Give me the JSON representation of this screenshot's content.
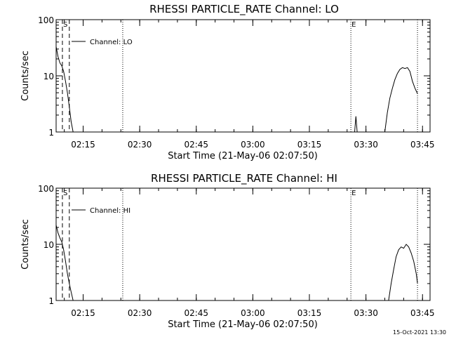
{
  "footer_timestamp": "15-Oct-2021 13:30",
  "chart_data": [
    {
      "type": "line",
      "title": "RHESSI PARTICLE_RATE Channel: LO",
      "xlabel": "Start Time (21-May-06 02:07:50)",
      "ylabel": "Counts/sec",
      "yscale": "log",
      "ylim": [
        1,
        100
      ],
      "xlim": [
        "02:07:50",
        "03:47:00"
      ],
      "x_ticks": [
        "02:15",
        "02:30",
        "02:45",
        "03:00",
        "03:15",
        "03:30",
        "03:45"
      ],
      "y_ticks": [
        "1",
        "10",
        "100"
      ],
      "legend": {
        "label": "Channel: LO",
        "placement": "top-left"
      },
      "markers": [
        {
          "label": "S",
          "time": "02:09:30",
          "style": "dashed"
        },
        {
          "label": "",
          "time": "02:11:20",
          "style": "dashed"
        },
        {
          "label": "",
          "time": "02:25:30",
          "style": "dotted"
        },
        {
          "label": "E",
          "time": "03:26:00",
          "style": "dotted"
        },
        {
          "label": "",
          "time": "03:43:40",
          "style": "dotted"
        }
      ],
      "series": [
        {
          "name": "Channel: LO",
          "segments": [
            {
              "x": [
                "02:07:50",
                "02:08:20",
                "02:08:50",
                "02:09:20",
                "02:09:50",
                "02:10:20",
                "02:10:50",
                "02:11:20",
                "02:11:50",
                "02:12:20"
              ],
              "y": [
                33,
                22,
                17,
                15,
                12,
                8,
                5,
                2.8,
                1.5,
                1
              ]
            },
            {
              "x": [
                "03:27:00",
                "03:27:20",
                "03:27:40"
              ],
              "y": [
                1,
                1.9,
                1
              ]
            },
            {
              "x": [
                "03:35:00",
                "03:35:40",
                "03:36:20",
                "03:37:00",
                "03:37:40",
                "03:38:20",
                "03:39:00",
                "03:39:40",
                "03:40:20",
                "03:41:00",
                "03:41:40",
                "03:42:20",
                "03:43:00",
                "03:43:40"
              ],
              "y": [
                1,
                2.2,
                4,
                6,
                8.5,
                11,
                13,
                14,
                13.5,
                14,
                12,
                8,
                6,
                4.8
              ]
            }
          ]
        }
      ]
    },
    {
      "type": "line",
      "title": "RHESSI PARTICLE_RATE Channel: HI",
      "xlabel": "Start Time (21-May-06 02:07:50)",
      "ylabel": "Counts/sec",
      "yscale": "log",
      "ylim": [
        1,
        100
      ],
      "xlim": [
        "02:07:50",
        "03:47:00"
      ],
      "x_ticks": [
        "02:15",
        "02:30",
        "02:45",
        "03:00",
        "03:15",
        "03:30",
        "03:45"
      ],
      "y_ticks": [
        "1",
        "10",
        "100"
      ],
      "legend": {
        "label": "Channel: HI",
        "placement": "top-left"
      },
      "markers": [
        {
          "label": "S",
          "time": "02:09:30",
          "style": "dashed"
        },
        {
          "label": "",
          "time": "02:11:20",
          "style": "dashed"
        },
        {
          "label": "",
          "time": "02:25:30",
          "style": "dotted"
        },
        {
          "label": "E",
          "time": "03:26:00",
          "style": "dotted"
        },
        {
          "label": "",
          "time": "03:43:40",
          "style": "dotted"
        }
      ],
      "series": [
        {
          "name": "Channel: HI",
          "segments": [
            {
              "x": [
                "02:07:50",
                "02:08:20",
                "02:08:50",
                "02:09:20",
                "02:09:50",
                "02:10:20",
                "02:10:50",
                "02:11:20",
                "02:11:50",
                "02:12:20"
              ],
              "y": [
                22,
                16,
                13,
                11,
                8,
                5,
                3,
                2,
                1.4,
                1
              ]
            },
            {
              "x": [
                "03:36:00",
                "03:36:40",
                "03:37:20",
                "03:38:00",
                "03:38:40",
                "03:39:20",
                "03:40:00",
                "03:40:40",
                "03:41:20",
                "03:42:00",
                "03:42:40",
                "03:43:20",
                "03:43:40"
              ],
              "y": [
                1,
                2,
                3.5,
                6,
                8,
                9,
                8.5,
                10,
                9,
                7,
                5,
                3,
                2
              ]
            }
          ]
        }
      ]
    }
  ]
}
